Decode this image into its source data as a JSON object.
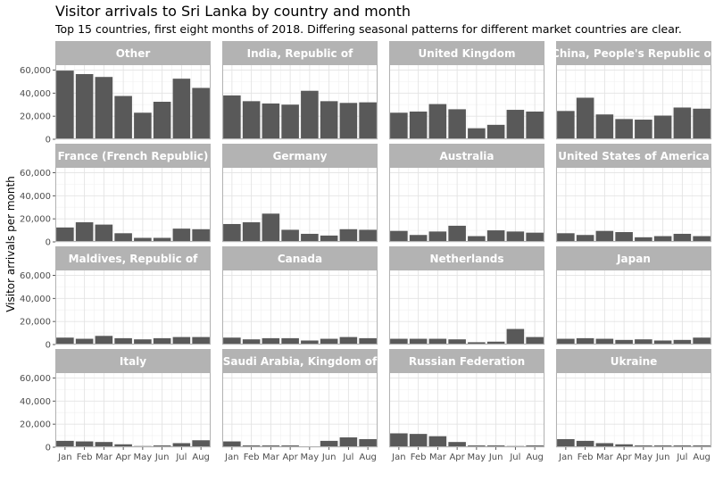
{
  "chart_data": {
    "type": "bar",
    "title": "Visitor arrivals to Sri Lanka by country and month",
    "subtitle": "Top 15 countries, first eight months of 2018.  Differing seasonal patterns for different market countries are clear.",
    "xlabel": "",
    "ylabel": "Visitor arrivals per month",
    "categories": [
      "Jan",
      "Feb",
      "Mar",
      "Apr",
      "May",
      "Jun",
      "Jul",
      "Aug"
    ],
    "ylim": [
      0,
      65000
    ],
    "yticks": [
      0,
      20000,
      40000,
      60000
    ],
    "ytick_labels": [
      "0",
      "20,000",
      "40,000",
      "60,000"
    ],
    "grid": true,
    "bar_color": "#595959",
    "strip_color": "#b3b3b3",
    "panels": [
      {
        "name": "Other",
        "values": [
          59500,
          56500,
          54000,
          37500,
          23000,
          32500,
          52500,
          44500
        ]
      },
      {
        "name": "India, Republic of",
        "values": [
          38000,
          33000,
          31000,
          30000,
          42000,
          33000,
          31500,
          32000
        ]
      },
      {
        "name": "United Kingdom",
        "values": [
          23000,
          24000,
          30500,
          26000,
          9500,
          12500,
          25500,
          24000
        ]
      },
      {
        "name": "China, People's Republic of",
        "values": [
          24500,
          36000,
          21500,
          17500,
          17000,
          20500,
          27500,
          26500
        ]
      },
      {
        "name": "France (French Republic)",
        "values": [
          12500,
          17000,
          15000,
          7500,
          3500,
          3500,
          11500,
          11000
        ]
      },
      {
        "name": "Germany",
        "values": [
          15500,
          17000,
          24500,
          10500,
          7000,
          5500,
          11000,
          10500
        ]
      },
      {
        "name": "Australia",
        "values": [
          9500,
          6000,
          9000,
          14000,
          5000,
          10000,
          9000,
          8000
        ]
      },
      {
        "name": "United States of America",
        "values": [
          7500,
          6000,
          9500,
          8500,
          4000,
          5000,
          7000,
          5000
        ]
      },
      {
        "name": "Maldives, Republic of",
        "values": [
          6000,
          5000,
          7500,
          5500,
          4500,
          5500,
          6500,
          6500
        ]
      },
      {
        "name": "Canada",
        "values": [
          6000,
          4500,
          5500,
          5500,
          3500,
          5000,
          6500,
          5500
        ]
      },
      {
        "name": "Netherlands",
        "values": [
          5000,
          5000,
          5000,
          4500,
          2000,
          2500,
          13500,
          6500
        ]
      },
      {
        "name": "Japan",
        "values": [
          5000,
          5500,
          5000,
          4000,
          4500,
          3500,
          4000,
          6000
        ]
      },
      {
        "name": "Italy",
        "values": [
          5500,
          5000,
          4500,
          2500,
          1000,
          1500,
          3500,
          6000
        ]
      },
      {
        "name": "Saudi Arabia, Kingdom of",
        "values": [
          5000,
          1500,
          1500,
          1500,
          500,
          5500,
          8500,
          7000
        ]
      },
      {
        "name": "Russian Federation",
        "values": [
          12000,
          11500,
          9500,
          4500,
          1500,
          1500,
          1000,
          1500
        ]
      },
      {
        "name": "Ukraine",
        "values": [
          7000,
          5500,
          3500,
          2500,
          1500,
          1500,
          1500,
          1500
        ]
      }
    ]
  }
}
